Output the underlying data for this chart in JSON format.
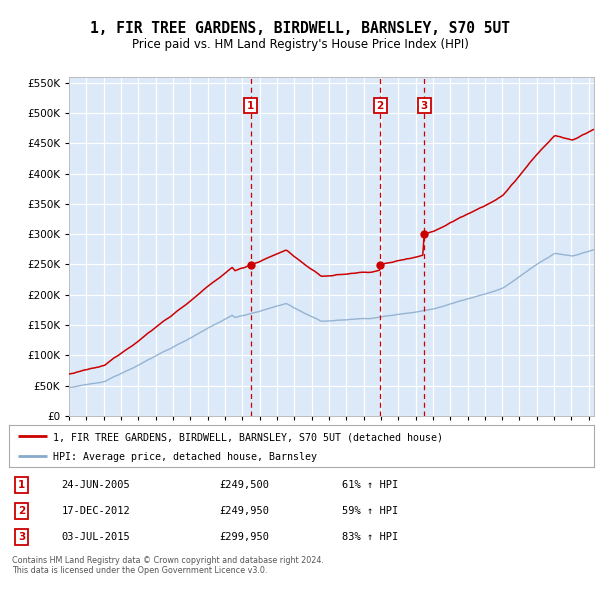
{
  "title": "1, FIR TREE GARDENS, BIRDWELL, BARNSLEY, S70 5UT",
  "subtitle": "Price paid vs. HM Land Registry's House Price Index (HPI)",
  "footer1": "Contains HM Land Registry data © Crown copyright and database right 2024.",
  "footer2": "This data is licensed under the Open Government Licence v3.0.",
  "legend_property": "1, FIR TREE GARDENS, BIRDWELL, BARNSLEY, S70 5UT (detached house)",
  "legend_hpi": "HPI: Average price, detached house, Barnsley",
  "sales": [
    {
      "num": 1,
      "date": "24-JUN-2005",
      "price": 249500,
      "hpi_pct": "61% ↑ HPI",
      "x_year": 2005.48
    },
    {
      "num": 2,
      "date": "17-DEC-2012",
      "price": 249950,
      "hpi_pct": "59% ↑ HPI",
      "x_year": 2012.96
    },
    {
      "num": 3,
      "date": "03-JUL-2015",
      "price": 299950,
      "hpi_pct": "83% ↑ HPI",
      "x_year": 2015.5
    }
  ],
  "ylim": [
    0,
    560000
  ],
  "xlim_min": 1995.0,
  "xlim_max": 2025.3,
  "background_color": "#dce9f8",
  "grid_color": "#ffffff",
  "red_line_color": "#cc0000",
  "blue_line_color": "#88aacc",
  "marker_box_color": "#cc0000",
  "dashed_line_color": "#cc0000",
  "sale_dot_color": "#cc0000",
  "fig_width": 6.0,
  "fig_height": 5.9,
  "dpi": 100
}
